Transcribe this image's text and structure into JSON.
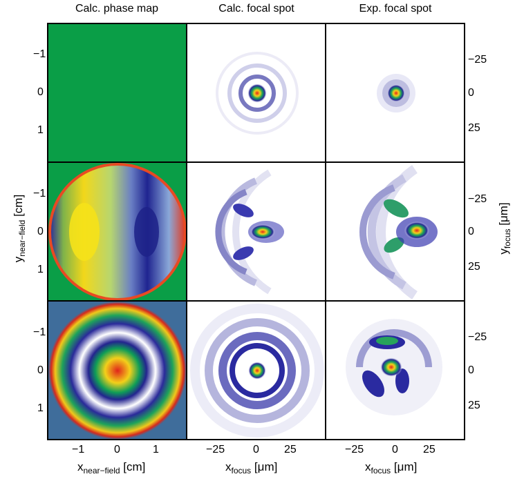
{
  "columns": [
    "Calc. phase map",
    "Calc. focal spot",
    "Exp. focal spot"
  ],
  "axes": {
    "y_left_label": {
      "main": "y",
      "sub": "near−field",
      "unit": "[cm]"
    },
    "y_right_label": {
      "main": "y",
      "sub": "focus",
      "unit": "[μm]"
    },
    "x_label_1": {
      "main": "x",
      "sub": "near−field",
      "unit": "[cm]"
    },
    "x_label_2": {
      "main": "x",
      "sub": "focus",
      "unit": "[μm]"
    },
    "x_label_3": {
      "main": "x",
      "sub": "focus",
      "unit": "[μm]"
    },
    "left_ticks": [
      "−1",
      "0",
      "1"
    ],
    "right_ticks": [
      "−25",
      "0",
      "25"
    ],
    "bottom_ticks_col1": [
      "−1",
      "0",
      "1"
    ],
    "bottom_ticks_col2": [
      "−25",
      "0",
      "25"
    ],
    "bottom_ticks_col3": [
      "−25",
      "0",
      "25"
    ]
  },
  "colors": {
    "flat_green": "#0a9e47",
    "row3_background": "#3f6d9b",
    "halo": "#3a3ab0",
    "core": "#e3261b",
    "frame": "#000000"
  }
}
